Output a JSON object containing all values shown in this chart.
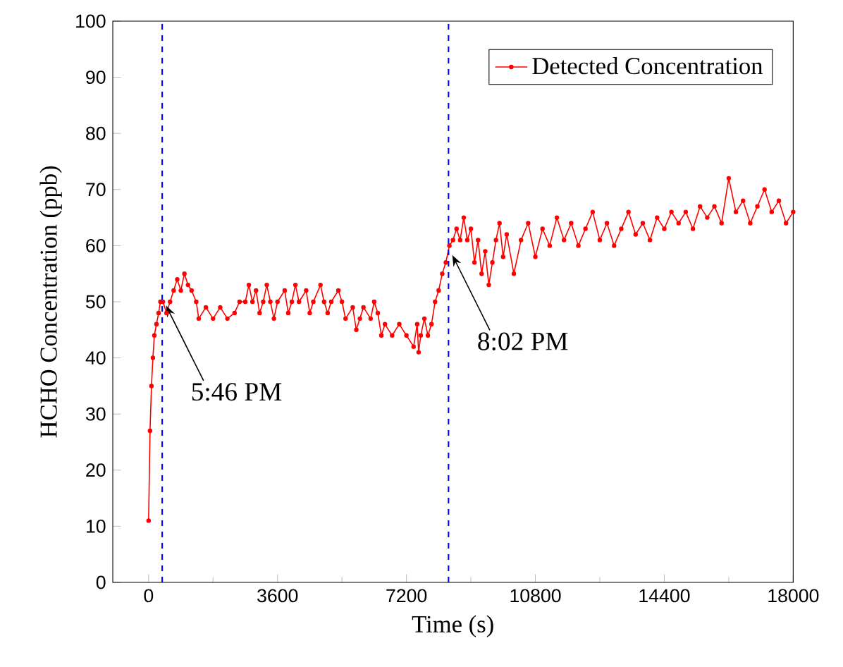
{
  "chart_data": {
    "type": "line",
    "xlabel": "Time (s)",
    "ylabel": "HCHO Concentration (ppb)",
    "xlim": [
      -1000,
      18000
    ],
    "xticks": [
      0,
      3600,
      7200,
      10800,
      14400,
      18000
    ],
    "ylim": [
      0,
      100
    ],
    "yticks": [
      0,
      10,
      20,
      30,
      40,
      50,
      60,
      70,
      80,
      90,
      100
    ],
    "legend": "top right",
    "marker": "circle",
    "line_style": "solid",
    "grid": false,
    "series": [
      {
        "name": "Detected Concentration",
        "color": "#ff0000",
        "x": [
          0,
          40,
          80,
          120,
          160,
          220,
          280,
          330,
          400,
          500,
          600,
          700,
          800,
          900,
          1000,
          1100,
          1200,
          1330,
          1400,
          1600,
          1800,
          2000,
          2200,
          2400,
          2540,
          2700,
          2800,
          2900,
          3000,
          3100,
          3200,
          3300,
          3400,
          3500,
          3600,
          3800,
          3900,
          4000,
          4100,
          4200,
          4400,
          4500,
          4600,
          4800,
          4900,
          5000,
          5100,
          5300,
          5400,
          5500,
          5700,
          5800,
          5900,
          6000,
          6200,
          6300,
          6400,
          6500,
          6600,
          6800,
          7000,
          7200,
          7400,
          7500,
          7540,
          7600,
          7700,
          7800,
          7900,
          8000,
          8100,
          8200,
          8300,
          8400,
          8500,
          8600,
          8700,
          8800,
          8900,
          9000,
          9100,
          9200,
          9300,
          9400,
          9500,
          9600,
          9700,
          9800,
          9900,
          10000,
          10200,
          10400,
          10600,
          10800,
          11000,
          11200,
          11400,
          11600,
          11800,
          12000,
          12200,
          12400,
          12600,
          12800,
          13000,
          13200,
          13400,
          13600,
          13800,
          14000,
          14200,
          14400,
          14600,
          14800,
          15000,
          15200,
          15400,
          15600,
          15800,
          16000,
          16200,
          16400,
          16600,
          16800,
          17000,
          17200,
          17400,
          17600,
          17800,
          18000
        ],
        "values": [
          11,
          27,
          35,
          40,
          44,
          46,
          48,
          50,
          50,
          48,
          50,
          52,
          54,
          52,
          55,
          53,
          52,
          50,
          47,
          49,
          47,
          49,
          47,
          48,
          50,
          50,
          53,
          50,
          52,
          48,
          50,
          53,
          50,
          47,
          50,
          52,
          48,
          50,
          53,
          50,
          52,
          48,
          50,
          53,
          50,
          48,
          50,
          52,
          50,
          47,
          49,
          45,
          47,
          49,
          47,
          50,
          48,
          44,
          46,
          44,
          46,
          44,
          42,
          46,
          41,
          44,
          47,
          44,
          46,
          50,
          52,
          55,
          57,
          60,
          61,
          63,
          61,
          65,
          61,
          63,
          57,
          61,
          55,
          59,
          53,
          57,
          61,
          64,
          58,
          62,
          55,
          61,
          64,
          58,
          63,
          60,
          65,
          61,
          64,
          60,
          63,
          66,
          61,
          64,
          60,
          63,
          66,
          62,
          64,
          61,
          65,
          63,
          66,
          64,
          66,
          63,
          67,
          65,
          67,
          64,
          72,
          66,
          68,
          64,
          67,
          70,
          66,
          68,
          64,
          66
        ]
      }
    ],
    "ref_lines": [
      {
        "axis": "x",
        "value": 380,
        "color": "#0000ff",
        "line_style": "dashed"
      },
      {
        "axis": "x",
        "value": 8375,
        "color": "#0000ff",
        "line_style": "dashed"
      }
    ],
    "annotations": [
      {
        "text": "5:46 PM",
        "x": 380,
        "y": 50
      },
      {
        "text": "8:02 PM",
        "x": 8375,
        "y": 59
      }
    ]
  }
}
